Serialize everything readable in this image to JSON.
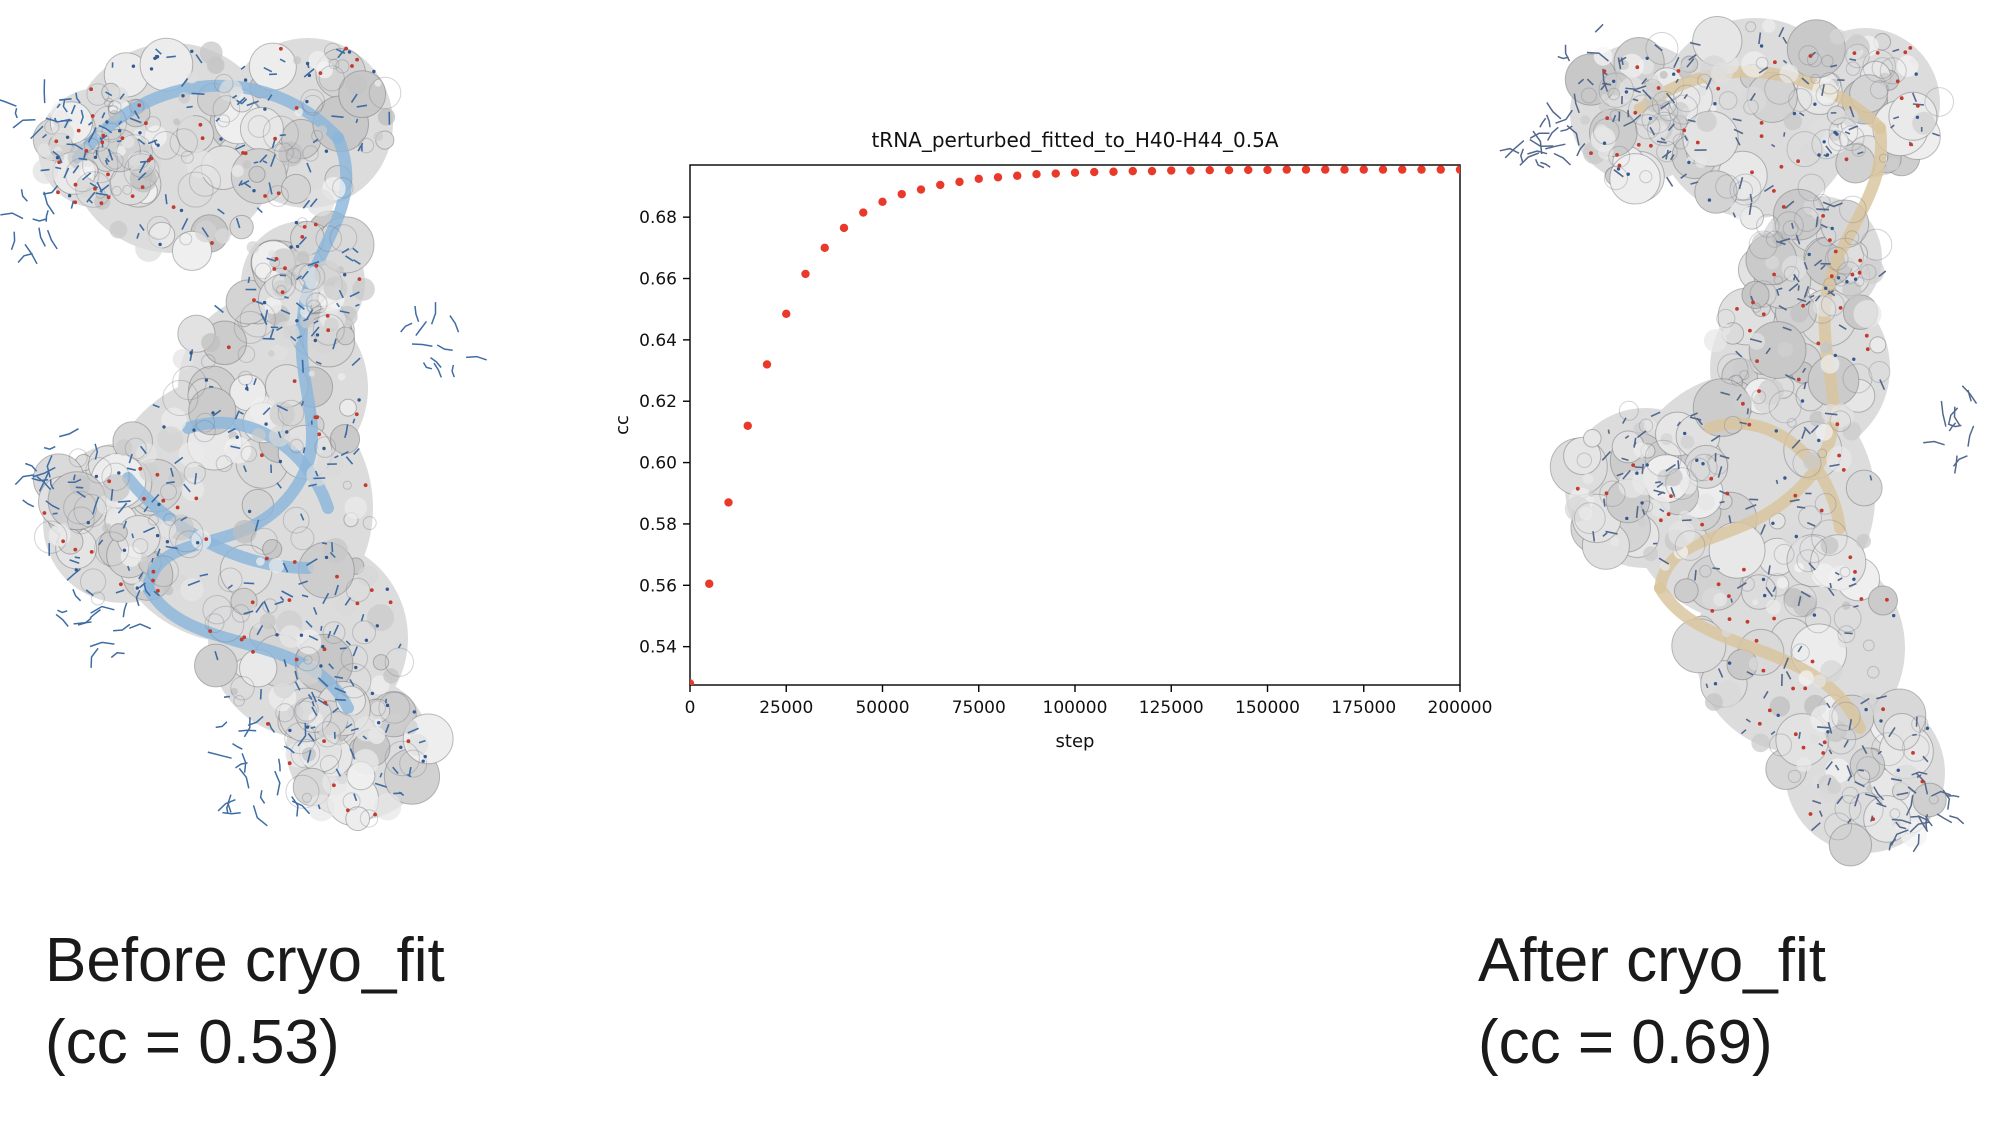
{
  "captions": {
    "before_line1": "Before cryo_fit",
    "before_line2": "(cc = 0.53)",
    "after_line1": "After cryo_fit",
    "after_line2": "(cc = 0.69)"
  },
  "molecules": {
    "before": {
      "description": "tRNA atomic model (blue ribbon/sticks) in gray cryo-EM density, before cryo_fit",
      "ribbon_color": "#8ab6da",
      "stick_color": "#3f6da3",
      "surface_color": "#dcdcdc",
      "oxygen_color": "#c23b2e",
      "nitrogen_color": "#33598f"
    },
    "after": {
      "description": "tRNA atomic model (wheat ribbon) in gray cryo-EM density, after cryo_fit",
      "ribbon_color": "#d9c59c",
      "stick_color": "#54688c",
      "surface_color": "#dcdcdc",
      "oxygen_color": "#c23b2e",
      "nitrogen_color": "#33598f"
    }
  },
  "chart_data": {
    "type": "scatter",
    "title": "tRNA_perturbed_fitted_to_H40-H44_0.5A",
    "xlabel": "step",
    "ylabel": "cc",
    "xlim": [
      0,
      200000
    ],
    "ylim": [
      0.5275,
      0.697
    ],
    "x_ticks": [
      0,
      25000,
      50000,
      75000,
      100000,
      125000,
      150000,
      175000,
      200000
    ],
    "y_ticks": [
      0.54,
      0.56,
      0.58,
      0.6,
      0.62,
      0.64,
      0.66,
      0.68
    ],
    "marker_color": "#e8392a",
    "legend": null,
    "grid": false,
    "x": [
      0,
      5000,
      10000,
      15000,
      20000,
      25000,
      30000,
      35000,
      40000,
      45000,
      50000,
      55000,
      60000,
      65000,
      70000,
      75000,
      80000,
      85000,
      90000,
      95000,
      100000,
      105000,
      110000,
      115000,
      120000,
      125000,
      130000,
      135000,
      140000,
      145000,
      150000,
      155000,
      160000,
      165000,
      170000,
      175000,
      180000,
      185000,
      190000,
      195000,
      200000
    ],
    "y": [
      0.528,
      0.5605,
      0.587,
      0.612,
      0.632,
      0.6485,
      0.6615,
      0.67,
      0.6765,
      0.6815,
      0.685,
      0.6875,
      0.689,
      0.6905,
      0.6915,
      0.6925,
      0.693,
      0.6935,
      0.694,
      0.6942,
      0.6945,
      0.6947,
      0.6948,
      0.695,
      0.695,
      0.6952,
      0.6952,
      0.6953,
      0.6953,
      0.6954,
      0.6954,
      0.6955,
      0.6955,
      0.6955,
      0.6955,
      0.6955,
      0.6955,
      0.6955,
      0.6955,
      0.6955,
      0.6955
    ]
  }
}
